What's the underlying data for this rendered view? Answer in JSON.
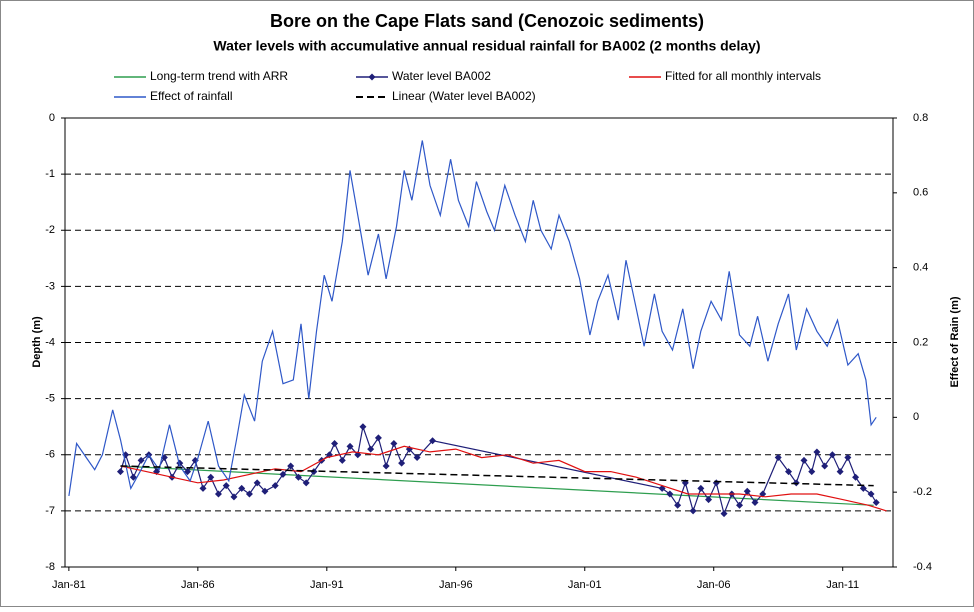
{
  "chart_data": {
    "type": "line",
    "title": "Bore on the Cape Flats sand (Cenozoic sediments)",
    "subtitle": "Water levels with accumulative annual residual rainfall for BA002 (2 months delay)",
    "ylabel": "Depth (m)",
    "y2label": "Effect of Rain (m)",
    "xlim": [
      1980.85,
      2012.95
    ],
    "xticks": [
      {
        "value": 1981,
        "label": "Jan-81"
      },
      {
        "value": 1986,
        "label": "Jan-86"
      },
      {
        "value": 1991,
        "label": "Jan-91"
      },
      {
        "value": 1996,
        "label": "Jan-96"
      },
      {
        "value": 2001,
        "label": "Jan-01"
      },
      {
        "value": 2006,
        "label": "Jan-06"
      },
      {
        "value": 2011,
        "label": "Jan-11"
      }
    ],
    "ylim": [
      -8,
      0
    ],
    "yticks": [
      0,
      -1,
      -2,
      -3,
      -4,
      -5,
      -6,
      -7,
      -8
    ],
    "y2lim": [
      -0.4,
      0.8
    ],
    "y2ticks": [
      0.8,
      0.6,
      0.4,
      0.2,
      0,
      -0.2,
      -0.4
    ],
    "grid": true,
    "series": [
      {
        "name": "Long-term trend with ARR",
        "color": "#2e9e4f",
        "linestyle": "solid",
        "x": [
          1983.0,
          2012.2
        ],
        "values": [
          -6.2,
          -6.9
        ]
      },
      {
        "name": "Water level BA002",
        "color": "#1f1f78",
        "linestyle": "solid",
        "marker": "diamond",
        "x": [
          1983.0,
          1983.2,
          1983.5,
          1983.8,
          1984.1,
          1984.4,
          1984.7,
          1985.0,
          1985.3,
          1985.6,
          1985.9,
          1986.2,
          1986.5,
          1986.8,
          1987.1,
          1987.4,
          1987.7,
          1988.0,
          1988.3,
          1988.6,
          1989.0,
          1989.3,
          1989.6,
          1989.9,
          1990.2,
          1990.5,
          1990.8,
          1991.1,
          1991.3,
          1991.6,
          1991.9,
          1992.2,
          1992.4,
          1992.7,
          1993.0,
          1993.3,
          1993.6,
          1993.9,
          1994.2,
          1994.5,
          1995.1,
          2004.0,
          2004.3,
          2004.6,
          2004.9,
          2005.2,
          2005.5,
          2005.8,
          2006.1,
          2006.4,
          2006.7,
          2007.0,
          2007.3,
          2007.6,
          2007.9,
          2008.5,
          2008.9,
          2009.2,
          2009.5,
          2009.8,
          2010.0,
          2010.3,
          2010.6,
          2010.9,
          2011.2,
          2011.5,
          2011.8,
          2012.1,
          2012.3
        ],
        "values": [
          -6.3,
          -6.0,
          -6.4,
          -6.1,
          -6.0,
          -6.3,
          -6.05,
          -6.4,
          -6.15,
          -6.3,
          -6.1,
          -6.6,
          -6.4,
          -6.7,
          -6.55,
          -6.75,
          -6.6,
          -6.7,
          -6.5,
          -6.65,
          -6.55,
          -6.35,
          -6.2,
          -6.4,
          -6.5,
          -6.3,
          -6.1,
          -6.0,
          -5.8,
          -6.1,
          -5.85,
          -6.0,
          -5.5,
          -5.9,
          -5.7,
          -6.2,
          -5.8,
          -6.15,
          -5.9,
          -6.05,
          -5.75,
          -6.6,
          -6.7,
          -6.9,
          -6.5,
          -7.0,
          -6.6,
          -6.8,
          -6.5,
          -7.05,
          -6.7,
          -6.9,
          -6.65,
          -6.85,
          -6.7,
          -6.05,
          -6.3,
          -6.5,
          -6.1,
          -6.3,
          -5.95,
          -6.2,
          -6.0,
          -6.3,
          -6.05,
          -6.4,
          -6.6,
          -6.7,
          -6.85
        ]
      },
      {
        "name": "Fitted for all monthly intervals",
        "color": "#e01010",
        "linestyle": "solid",
        "x": [
          1983,
          1984,
          1985,
          1986,
          1987,
          1988,
          1989,
          1990,
          1991,
          1992,
          1993,
          1994,
          1995,
          1996,
          1997,
          1998,
          1999,
          2000,
          2001,
          2002,
          2003,
          2004,
          2005,
          2006,
          2007,
          2008,
          2009,
          2010,
          2011,
          2012,
          2012.7
        ],
        "values": [
          -6.2,
          -6.3,
          -6.4,
          -6.5,
          -6.45,
          -6.35,
          -6.25,
          -6.3,
          -6.05,
          -5.95,
          -6.0,
          -5.85,
          -5.95,
          -5.9,
          -6.05,
          -6.0,
          -6.15,
          -6.1,
          -6.3,
          -6.3,
          -6.4,
          -6.55,
          -6.7,
          -6.7,
          -6.7,
          -6.75,
          -6.7,
          -6.7,
          -6.8,
          -6.9,
          -7.0
        ]
      },
      {
        "name": "Effect of rainfall",
        "color": "#2f58c8",
        "linestyle": "solid",
        "axis": "y2",
        "x": [
          1981.0,
          1981.3,
          1981.7,
          1982.0,
          1982.3,
          1982.7,
          1983.0,
          1983.4,
          1983.8,
          1984.1,
          1984.5,
          1984.9,
          1985.3,
          1985.7,
          1986.0,
          1986.4,
          1986.8,
          1987.2,
          1987.5,
          1987.8,
          1988.2,
          1988.5,
          1988.9,
          1989.3,
          1989.7,
          1990.0,
          1990.3,
          1990.6,
          1990.9,
          1991.2,
          1991.6,
          1991.9,
          1992.2,
          1992.6,
          1993.0,
          1993.3,
          1993.7,
          1994.0,
          1994.3,
          1994.7,
          1995.0,
          1995.4,
          1995.8,
          1996.1,
          1996.5,
          1996.8,
          1997.2,
          1997.5,
          1997.9,
          1998.3,
          1998.7,
          1999.0,
          1999.3,
          1999.7,
          2000.0,
          2000.4,
          2000.8,
          2001.2,
          2001.5,
          2001.9,
          2002.3,
          2002.6,
          2003.0,
          2003.3,
          2003.7,
          2004.0,
          2004.4,
          2004.8,
          2005.2,
          2005.5,
          2005.9,
          2006.3,
          2006.6,
          2007.0,
          2007.4,
          2007.7,
          2008.1,
          2008.5,
          2008.9,
          2009.2,
          2009.6,
          2010.0,
          2010.4,
          2010.8,
          2011.2,
          2011.6,
          2011.9,
          2012.1,
          2012.3
        ],
        "values": [
          -0.21,
          -0.07,
          -0.11,
          -0.14,
          -0.1,
          0.02,
          -0.06,
          -0.19,
          -0.14,
          -0.1,
          -0.14,
          -0.02,
          -0.13,
          -0.17,
          -0.11,
          -0.01,
          -0.13,
          -0.17,
          -0.06,
          0.06,
          -0.01,
          0.15,
          0.23,
          0.09,
          0.1,
          0.25,
          0.05,
          0.23,
          0.38,
          0.31,
          0.47,
          0.66,
          0.54,
          0.38,
          0.49,
          0.37,
          0.51,
          0.66,
          0.58,
          0.74,
          0.62,
          0.54,
          0.69,
          0.58,
          0.51,
          0.63,
          0.55,
          0.5,
          0.62,
          0.54,
          0.47,
          0.58,
          0.5,
          0.45,
          0.54,
          0.47,
          0.37,
          0.22,
          0.31,
          0.38,
          0.26,
          0.42,
          0.29,
          0.19,
          0.33,
          0.23,
          0.18,
          0.29,
          0.13,
          0.23,
          0.31,
          0.26,
          0.39,
          0.22,
          0.19,
          0.27,
          0.15,
          0.25,
          0.33,
          0.18,
          0.29,
          0.23,
          0.19,
          0.26,
          0.14,
          0.17,
          0.1,
          -0.02,
          0.0
        ]
      },
      {
        "name": "Linear (Water level BA002)",
        "color": "#000000",
        "linestyle": "dashed",
        "x": [
          1983.0,
          2012.2
        ],
        "values": [
          -6.2,
          -6.55
        ]
      }
    ]
  }
}
